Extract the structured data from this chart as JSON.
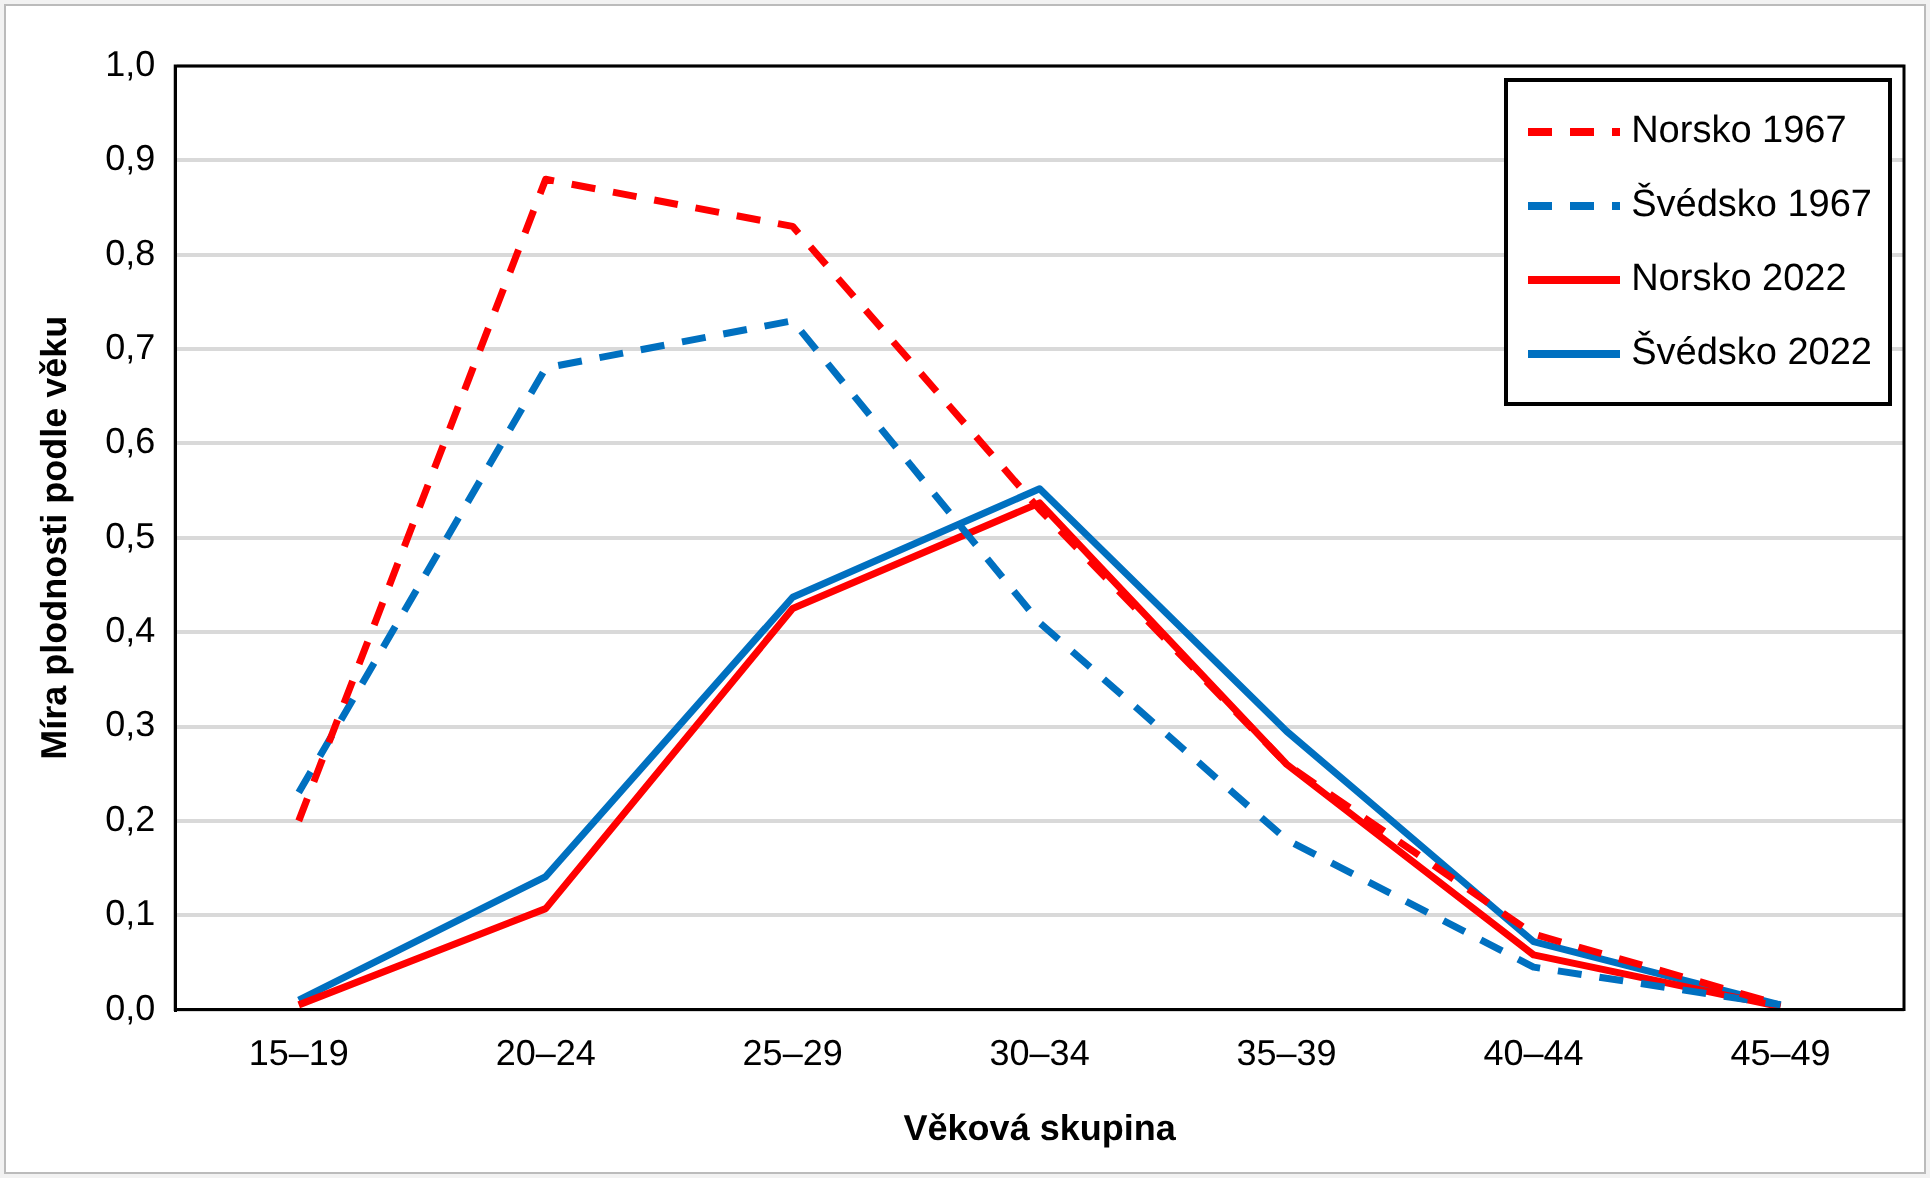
{
  "chart_data": {
    "type": "line",
    "xlabel": "Věková skupina",
    "ylabel": "Míra plodnosti podle věku",
    "categories": [
      "15–19",
      "20–24",
      "25–29",
      "30–34",
      "35–39",
      "40–44",
      "45–49"
    ],
    "series": [
      {
        "name": "Norsko 1967",
        "color": "#ff0000",
        "line_style": "dashed",
        "values": [
          0.2,
          0.88,
          0.83,
          0.53,
          0.26,
          0.08,
          0.005
        ]
      },
      {
        "name": "Švédsko 1967",
        "color": "#0070c0",
        "line_style": "dashed",
        "values": [
          0.23,
          0.68,
          0.73,
          0.41,
          0.18,
          0.045,
          0.005
        ]
      },
      {
        "name": "Norsko 2022",
        "color": "#ff0000",
        "line_style": "solid",
        "values": [
          0.005,
          0.107,
          0.425,
          0.537,
          0.26,
          0.058,
          0.003
        ]
      },
      {
        "name": "Švédsko 2022",
        "color": "#0070c0",
        "line_style": "solid",
        "values": [
          0.01,
          0.141,
          0.437,
          0.552,
          0.295,
          0.072,
          0.005
        ]
      }
    ],
    "ylim": [
      0,
      1
    ],
    "yticks": [
      {
        "value": 0,
        "label": "0,0"
      },
      {
        "value": 0.1,
        "label": "0,1"
      },
      {
        "value": 0.2,
        "label": "0,2"
      },
      {
        "value": 0.3,
        "label": "0,3"
      },
      {
        "value": 0.4,
        "label": "0,4"
      },
      {
        "value": 0.5,
        "label": "0,5"
      },
      {
        "value": 0.6,
        "label": "0,6"
      },
      {
        "value": 0.7,
        "label": "0,7"
      },
      {
        "value": 0.8,
        "label": "0,8"
      },
      {
        "value": 0.9,
        "label": "0,9"
      },
      {
        "value": 1,
        "label": "1,0"
      }
    ],
    "grid": "y",
    "legend": "top right",
    "marker": "none"
  }
}
